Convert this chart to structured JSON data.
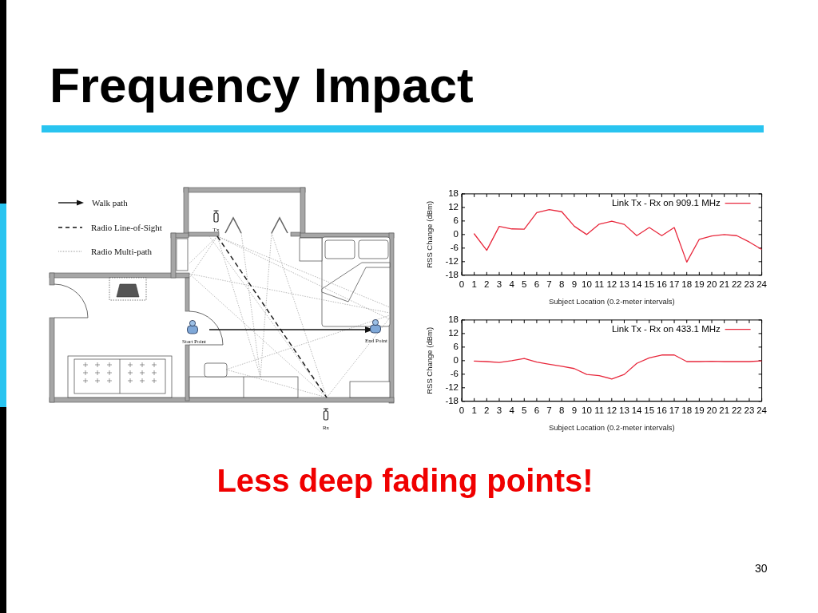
{
  "chart_data": [
    {
      "type": "other",
      "title": "Frequency Impact",
      "annotations": [
        "Walk path",
        "Radio Line-of-Sight",
        "Radio Multi-path",
        "Tx",
        "Start Point",
        "End Point",
        "Rx",
        "Less deep fading points!",
        "30"
      ]
    },
    {
      "type": "line",
      "xlabel": "Subject Location (0.2-meter intervals)",
      "ylabel": "RSS Change (dBm)",
      "xlim": [
        0,
        24
      ],
      "xticks": [
        0,
        1,
        2,
        3,
        4,
        5,
        6,
        7,
        8,
        9,
        10,
        11,
        12,
        13,
        14,
        15,
        16,
        17,
        18,
        19,
        20,
        21,
        22,
        23,
        24
      ],
      "ylim": [
        -18,
        18
      ],
      "yticks": [
        -18,
        -12,
        -6,
        0,
        6,
        12,
        18
      ],
      "grid": false,
      "legend": "top right",
      "line_style": "solid",
      "series": [
        {
          "name": "Link Tx - Rx on 909.1 MHz",
          "color": "#e8283c",
          "x": [
            1,
            2,
            3,
            4,
            5,
            6,
            7,
            8,
            9,
            10,
            11,
            12,
            13,
            14,
            15,
            16,
            17,
            18,
            19,
            20,
            21,
            22,
            23,
            24
          ],
          "values": [
            0.3,
            -7,
            3.6,
            2.5,
            2.4,
            9.7,
            11,
            10.1,
            3.7,
            0,
            4.6,
            5.9,
            4.5,
            -0.5,
            3.1,
            -0.5,
            3.1,
            -12.2,
            -2.1,
            -0.6,
            0,
            -0.5,
            -3.3,
            -6.6
          ]
        }
      ]
    },
    {
      "type": "line",
      "xlabel": "Subject Location (0.2-meter intervals)",
      "ylabel": "RSS Change (dBm)",
      "xlim": [
        0,
        24
      ],
      "xticks": [
        0,
        1,
        2,
        3,
        4,
        5,
        6,
        7,
        8,
        9,
        10,
        11,
        12,
        13,
        14,
        15,
        16,
        17,
        18,
        19,
        20,
        21,
        22,
        23,
        24
      ],
      "ylim": [
        -18,
        18
      ],
      "yticks": [
        -18,
        -12,
        -6,
        0,
        6,
        12,
        18
      ],
      "grid": false,
      "legend": "top right",
      "line_style": "solid",
      "series": [
        {
          "name": "Link Tx - Rx on 433.1 MHz",
          "color": "#e8283c",
          "x": [
            1,
            2,
            3,
            4,
            5,
            6,
            7,
            8,
            9,
            10,
            11,
            12,
            13,
            14,
            15,
            16,
            17,
            18,
            19,
            20,
            21,
            22,
            23,
            24
          ],
          "values": [
            -0.2,
            -0.4,
            -0.8,
            0,
            1,
            -0.6,
            -1.6,
            -2.5,
            -3.5,
            -6.1,
            -6.6,
            -8.1,
            -6.1,
            -1.2,
            1.2,
            2.5,
            2.5,
            -0.4,
            -0.4,
            -0.3,
            -0.4,
            -0.4,
            -0.4,
            -0.1
          ]
        }
      ]
    }
  ]
}
